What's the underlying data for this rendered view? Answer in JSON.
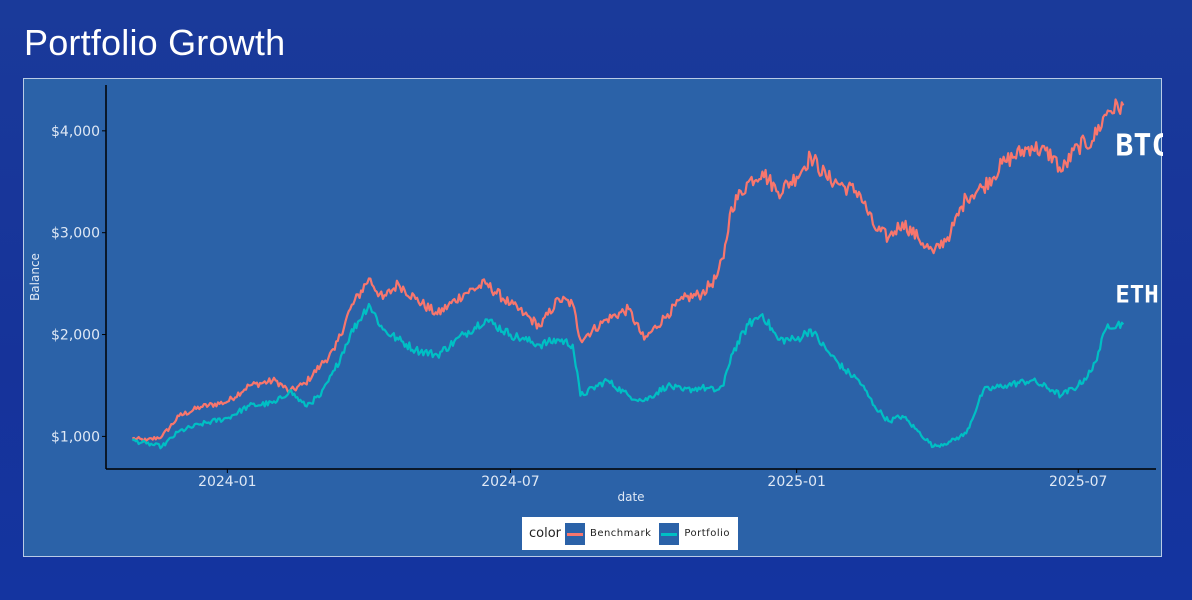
{
  "title": "Portfolio Growth",
  "chart_data": {
    "type": "line",
    "xlabel": "date",
    "ylabel": "Balance",
    "x_range": [
      "2023-10-15",
      "2025-08-20"
    ],
    "ylim": [
      680,
      4450
    ],
    "x_ticks": [
      {
        "date": "2024-01-01",
        "label": "2024-01"
      },
      {
        "date": "2024-07-01",
        "label": "2024-07"
      },
      {
        "date": "2025-01-01",
        "label": "2025-01"
      },
      {
        "date": "2025-07-01",
        "label": "2025-07"
      }
    ],
    "y_ticks": [
      {
        "value": 1000,
        "label": "$1,000"
      },
      {
        "value": 2000,
        "label": "$2,000"
      },
      {
        "value": 3000,
        "label": "$3,000"
      },
      {
        "value": 4000,
        "label": "$4,000"
      }
    ],
    "grid": false,
    "legend": {
      "title": "color",
      "placement": "bottom-center"
    },
    "series": [
      {
        "name": "Benchmark",
        "color": "#f8766d",
        "annotation": "BTC",
        "points": [
          [
            "2023-11-01",
            980
          ],
          [
            "2023-11-10",
            960
          ],
          [
            "2023-11-20",
            1000
          ],
          [
            "2023-12-01",
            1200
          ],
          [
            "2023-12-15",
            1290
          ],
          [
            "2024-01-01",
            1340
          ],
          [
            "2024-01-15",
            1500
          ],
          [
            "2024-02-01",
            1550
          ],
          [
            "2024-02-10",
            1440
          ],
          [
            "2024-02-20",
            1520
          ],
          [
            "2024-03-01",
            1700
          ],
          [
            "2024-03-10",
            1850
          ],
          [
            "2024-03-20",
            2250
          ],
          [
            "2024-04-01",
            2550
          ],
          [
            "2024-04-10",
            2350
          ],
          [
            "2024-04-20",
            2500
          ],
          [
            "2024-05-01",
            2350
          ],
          [
            "2024-05-15",
            2200
          ],
          [
            "2024-06-01",
            2400
          ],
          [
            "2024-06-15",
            2500
          ],
          [
            "2024-07-01",
            2300
          ],
          [
            "2024-07-10",
            2200
          ],
          [
            "2024-07-20",
            2080
          ],
          [
            "2024-08-01",
            2350
          ],
          [
            "2024-08-10",
            2300
          ],
          [
            "2024-08-15",
            1950
          ],
          [
            "2024-09-01",
            2150
          ],
          [
            "2024-09-15",
            2250
          ],
          [
            "2024-09-25",
            1950
          ],
          [
            "2024-10-10",
            2200
          ],
          [
            "2024-10-20",
            2350
          ],
          [
            "2024-11-01",
            2400
          ],
          [
            "2024-11-10",
            2550
          ],
          [
            "2024-11-15",
            2750
          ],
          [
            "2024-11-20",
            3250
          ],
          [
            "2024-12-01",
            3500
          ],
          [
            "2024-12-10",
            3600
          ],
          [
            "2024-12-20",
            3400
          ],
          [
            "2025-01-01",
            3550
          ],
          [
            "2025-01-10",
            3750
          ],
          [
            "2025-01-20",
            3550
          ],
          [
            "2025-02-01",
            3450
          ],
          [
            "2025-02-10",
            3400
          ],
          [
            "2025-02-20",
            3050
          ],
          [
            "2025-03-01",
            2950
          ],
          [
            "2025-03-10",
            3100
          ],
          [
            "2025-03-20",
            2950
          ],
          [
            "2025-03-30",
            2800
          ],
          [
            "2025-04-10",
            3000
          ],
          [
            "2025-04-20",
            3350
          ],
          [
            "2025-05-01",
            3450
          ],
          [
            "2025-05-15",
            3700
          ],
          [
            "2025-06-01",
            3850
          ],
          [
            "2025-06-15",
            3750
          ],
          [
            "2025-06-20",
            3600
          ],
          [
            "2025-07-01",
            3850
          ],
          [
            "2025-07-10",
            3900
          ],
          [
            "2025-07-20",
            4200
          ],
          [
            "2025-07-30",
            4250
          ]
        ]
      },
      {
        "name": "Portfolio",
        "color": "#00bfc4",
        "annotation": "ETH",
        "points": [
          [
            "2023-11-01",
            960
          ],
          [
            "2023-11-10",
            930
          ],
          [
            "2023-11-20",
            900
          ],
          [
            "2023-12-01",
            1050
          ],
          [
            "2023-12-15",
            1120
          ],
          [
            "2024-01-01",
            1180
          ],
          [
            "2024-01-15",
            1300
          ],
          [
            "2024-02-01",
            1330
          ],
          [
            "2024-02-10",
            1450
          ],
          [
            "2024-02-20",
            1300
          ],
          [
            "2024-03-01",
            1400
          ],
          [
            "2024-03-10",
            1650
          ],
          [
            "2024-03-20",
            2000
          ],
          [
            "2024-04-01",
            2300
          ],
          [
            "2024-04-10",
            2050
          ],
          [
            "2024-04-20",
            1950
          ],
          [
            "2024-05-01",
            1850
          ],
          [
            "2024-05-15",
            1800
          ],
          [
            "2024-06-01",
            2000
          ],
          [
            "2024-06-15",
            2150
          ],
          [
            "2024-07-01",
            2000
          ],
          [
            "2024-07-10",
            1950
          ],
          [
            "2024-07-20",
            1900
          ],
          [
            "2024-08-01",
            1950
          ],
          [
            "2024-08-10",
            1900
          ],
          [
            "2024-08-15",
            1400
          ],
          [
            "2024-09-01",
            1550
          ],
          [
            "2024-09-15",
            1400
          ],
          [
            "2024-09-25",
            1350
          ],
          [
            "2024-10-10",
            1500
          ],
          [
            "2024-10-20",
            1450
          ],
          [
            "2024-11-01",
            1480
          ],
          [
            "2024-11-10",
            1450
          ],
          [
            "2024-11-15",
            1500
          ],
          [
            "2024-11-20",
            1800
          ],
          [
            "2024-12-01",
            2100
          ],
          [
            "2024-12-10",
            2200
          ],
          [
            "2024-12-20",
            1950
          ],
          [
            "2025-01-01",
            1950
          ],
          [
            "2025-01-10",
            2050
          ],
          [
            "2025-01-20",
            1850
          ],
          [
            "2025-02-01",
            1650
          ],
          [
            "2025-02-10",
            1550
          ],
          [
            "2025-02-20",
            1300
          ],
          [
            "2025-03-01",
            1150
          ],
          [
            "2025-03-10",
            1200
          ],
          [
            "2025-03-20",
            1050
          ],
          [
            "2025-03-30",
            900
          ],
          [
            "2025-04-10",
            950
          ],
          [
            "2025-04-20",
            1030
          ],
          [
            "2025-05-01",
            1450
          ],
          [
            "2025-05-15",
            1500
          ],
          [
            "2025-06-01",
            1550
          ],
          [
            "2025-06-15",
            1450
          ],
          [
            "2025-06-20",
            1400
          ],
          [
            "2025-07-01",
            1500
          ],
          [
            "2025-07-10",
            1650
          ],
          [
            "2025-07-20",
            2100
          ],
          [
            "2025-07-30",
            2100
          ]
        ]
      }
    ]
  }
}
